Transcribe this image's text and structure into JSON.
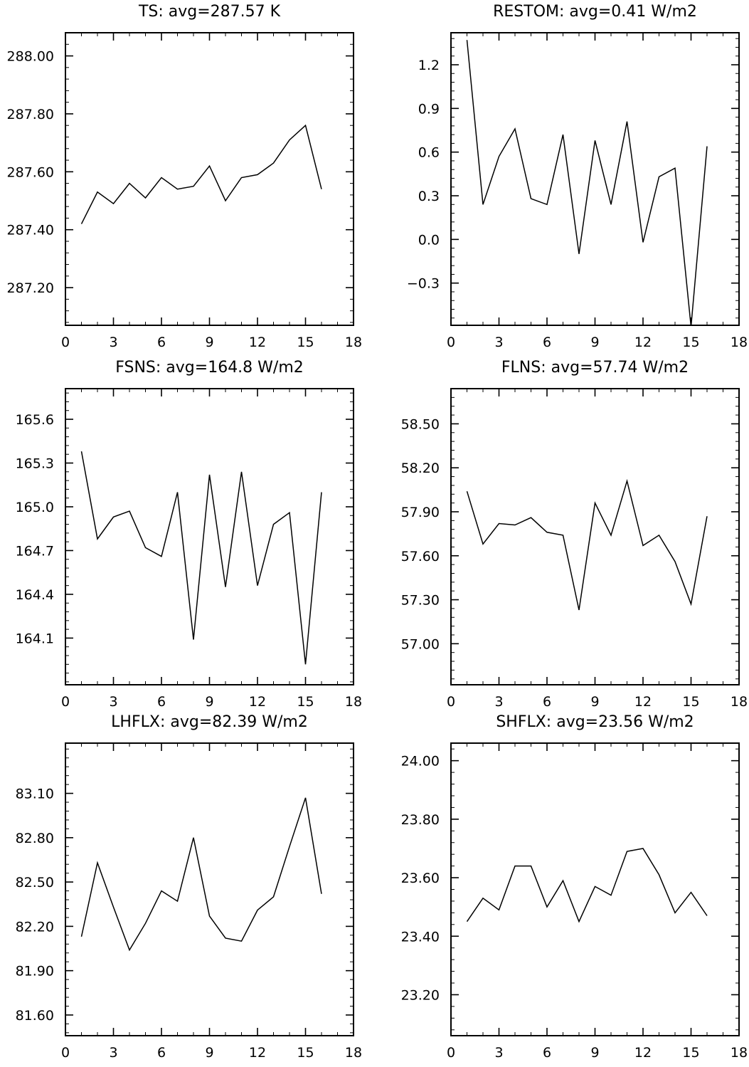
{
  "chart_data": [
    {
      "type": "line",
      "title": "TS: avg=287.57 K",
      "x": [
        1,
        2,
        3,
        4,
        5,
        6,
        7,
        8,
        9,
        10,
        11,
        12,
        13,
        14,
        15,
        16
      ],
      "y": [
        287.42,
        287.53,
        287.49,
        287.56,
        287.51,
        287.58,
        287.54,
        287.55,
        287.62,
        287.5,
        287.58,
        287.59,
        287.63,
        287.71,
        287.76,
        287.54
      ],
      "xlim": [
        0,
        18
      ],
      "ylim": [
        287.07,
        288.08
      ],
      "xticks": [
        0,
        3,
        6,
        9,
        12,
        15,
        18
      ],
      "xtick_labels": [
        "0",
        "3",
        "6",
        "9",
        "12",
        "15",
        "18"
      ],
      "yticks": [
        287.2,
        287.4,
        287.6,
        287.8,
        288.0
      ],
      "ytick_labels": [
        "287.20",
        "287.40",
        "287.60",
        "287.80",
        "288.00"
      ],
      "y_minor_step": 0.04
    },
    {
      "type": "line",
      "title": "RESTOM: avg=0.41 W/m2",
      "x": [
        1,
        2,
        3,
        4,
        5,
        6,
        7,
        8,
        9,
        10,
        11,
        12,
        13,
        14,
        15,
        16
      ],
      "y": [
        1.37,
        0.24,
        0.57,
        0.76,
        0.28,
        0.24,
        0.72,
        -0.1,
        0.68,
        0.24,
        0.81,
        -0.02,
        0.43,
        0.49,
        -0.6,
        0.64
      ],
      "xlim": [
        0,
        18
      ],
      "ylim": [
        -0.59,
        1.42
      ],
      "xticks": [
        0,
        3,
        6,
        9,
        12,
        15,
        18
      ],
      "xtick_labels": [
        "0",
        "3",
        "6",
        "9",
        "12",
        "15",
        "18"
      ],
      "yticks": [
        -0.3,
        0.0,
        0.3,
        0.6,
        0.9,
        1.2
      ],
      "ytick_labels": [
        "−0.3",
        "0.0",
        "0.3",
        "0.6",
        "0.9",
        "1.2"
      ],
      "y_minor_step": 0.06
    },
    {
      "type": "line",
      "title": "FSNS: avg=164.8 W/m2",
      "x": [
        1,
        2,
        3,
        4,
        5,
        6,
        7,
        8,
        9,
        10,
        11,
        12,
        13,
        14,
        15,
        16
      ],
      "y": [
        165.38,
        164.78,
        164.93,
        164.97,
        164.72,
        164.66,
        165.1,
        164.09,
        165.22,
        164.45,
        165.24,
        164.46,
        164.88,
        164.96,
        163.92,
        165.1
      ],
      "xlim": [
        0,
        18
      ],
      "ylim": [
        163.78,
        165.81
      ],
      "xticks": [
        0,
        3,
        6,
        9,
        12,
        15,
        18
      ],
      "xtick_labels": [
        "0",
        "3",
        "6",
        "9",
        "12",
        "15",
        "18"
      ],
      "yticks": [
        164.1,
        164.4,
        164.7,
        165.0,
        165.3,
        165.6
      ],
      "ytick_labels": [
        "164.1",
        "164.4",
        "164.7",
        "165.0",
        "165.3",
        "165.6"
      ],
      "y_minor_step": 0.06
    },
    {
      "type": "line",
      "title": "FLNS: avg=57.74 W/m2",
      "x": [
        1,
        2,
        3,
        4,
        5,
        6,
        7,
        8,
        9,
        10,
        11,
        12,
        13,
        14,
        15,
        16
      ],
      "y": [
        58.04,
        57.68,
        57.82,
        57.81,
        57.86,
        57.76,
        57.74,
        57.23,
        57.96,
        57.74,
        58.11,
        57.67,
        57.74,
        57.56,
        57.27,
        57.87
      ],
      "xlim": [
        0,
        18
      ],
      "ylim": [
        56.72,
        58.74
      ],
      "xticks": [
        0,
        3,
        6,
        9,
        12,
        15,
        18
      ],
      "xtick_labels": [
        "0",
        "3",
        "6",
        "9",
        "12",
        "15",
        "18"
      ],
      "yticks": [
        57.0,
        57.3,
        57.6,
        57.9,
        58.2,
        58.5
      ],
      "ytick_labels": [
        "57.00",
        "57.30",
        "57.60",
        "57.90",
        "58.20",
        "58.50"
      ],
      "y_minor_step": 0.06
    },
    {
      "type": "line",
      "title": "LHFLX: avg=82.39 W/m2",
      "x": [
        1,
        2,
        3,
        4,
        5,
        6,
        7,
        8,
        9,
        10,
        11,
        12,
        13,
        14,
        15,
        16
      ],
      "y": [
        82.13,
        82.63,
        82.33,
        82.04,
        82.22,
        82.44,
        82.37,
        82.8,
        82.27,
        82.12,
        82.1,
        82.31,
        82.4,
        82.74,
        83.07,
        82.42
      ],
      "xlim": [
        0,
        18
      ],
      "ylim": [
        81.46,
        83.44
      ],
      "xticks": [
        0,
        3,
        6,
        9,
        12,
        15,
        18
      ],
      "xtick_labels": [
        "0",
        "3",
        "6",
        "9",
        "12",
        "15",
        "18"
      ],
      "yticks": [
        81.6,
        81.9,
        82.2,
        82.5,
        82.8,
        83.1
      ],
      "ytick_labels": [
        "81.60",
        "81.90",
        "82.20",
        "82.50",
        "82.80",
        "83.10"
      ],
      "y_minor_step": 0.06
    },
    {
      "type": "line",
      "title": "SHFLX: avg=23.56 W/m2",
      "x": [
        1,
        2,
        3,
        4,
        5,
        6,
        7,
        8,
        9,
        10,
        11,
        12,
        13,
        14,
        15,
        16
      ],
      "y": [
        23.45,
        23.53,
        23.49,
        23.64,
        23.64,
        23.5,
        23.59,
        23.45,
        23.57,
        23.54,
        23.69,
        23.7,
        23.61,
        23.48,
        23.55,
        23.47
      ],
      "xlim": [
        0,
        18
      ],
      "ylim": [
        23.06,
        24.06
      ],
      "xticks": [
        0,
        3,
        6,
        9,
        12,
        15,
        18
      ],
      "xtick_labels": [
        "0",
        "3",
        "6",
        "9",
        "12",
        "15",
        "18"
      ],
      "yticks": [
        23.2,
        23.4,
        23.6,
        23.8,
        24.0
      ],
      "ytick_labels": [
        "23.20",
        "23.40",
        "23.60",
        "23.80",
        "24.00"
      ],
      "y_minor_step": 0.04
    }
  ]
}
